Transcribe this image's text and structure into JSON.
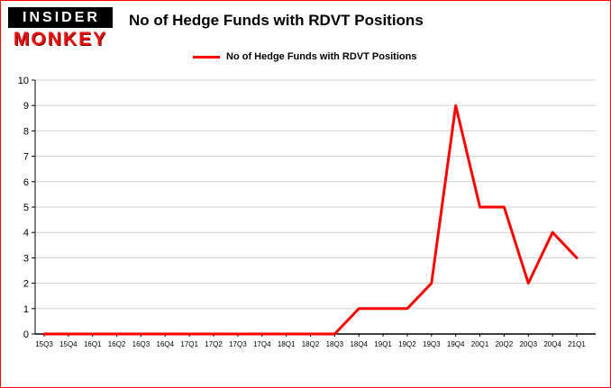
{
  "logo": {
    "line1": "INSIDER",
    "line2": "MONKEY"
  },
  "header": {
    "title": "No of Hedge Funds with RDVT Positions"
  },
  "legend": {
    "label": "No of Hedge Funds with RDVT Positions",
    "color": "#ff0000"
  },
  "chart_data": {
    "type": "line",
    "title": "No of Hedge Funds with RDVT Positions",
    "categories": [
      "15Q3",
      "15Q4",
      "16Q1",
      "16Q2",
      "16Q3",
      "16Q4",
      "17Q1",
      "17Q2",
      "17Q3",
      "17Q4",
      "18Q1",
      "18Q2",
      "18Q3",
      "18Q4",
      "19Q1",
      "19Q2",
      "19Q3",
      "19Q4",
      "20Q1",
      "20Q2",
      "20Q3",
      "20Q4",
      "21Q1"
    ],
    "values": [
      0,
      0,
      0,
      0,
      0,
      0,
      0,
      0,
      0,
      0,
      0,
      0,
      0,
      1,
      1,
      1,
      2,
      9,
      5,
      5,
      2,
      4,
      3
    ],
    "xlabel": "",
    "ylabel": "",
    "ylim": [
      0,
      10
    ],
    "yticks": [
      0,
      1,
      2,
      3,
      4,
      5,
      6,
      7,
      8,
      9,
      10
    ],
    "grid": true,
    "line_color": "#ff0000",
    "gridline_color": "#d0d0d0",
    "axis_color": "#000000",
    "legend_position": "top-left"
  }
}
